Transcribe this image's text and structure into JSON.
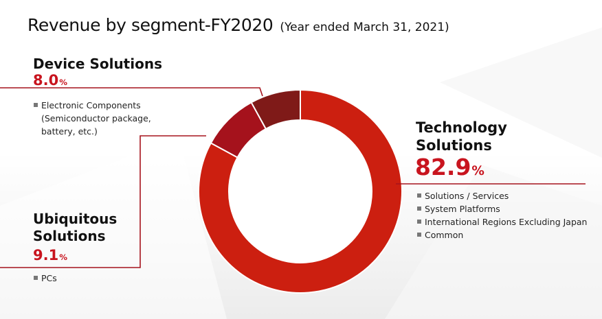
{
  "header": {
    "title": "Revenue by segment-FY2020",
    "subtitle": "(Year ended March 31, 2021)"
  },
  "colors": {
    "technology": "#cc1f10",
    "ubiquitous": "#a5121c",
    "device": "#7f1a18",
    "accent_text": "#c8141e",
    "leader_line": "#a6121c"
  },
  "chart_data": {
    "type": "pie",
    "variant": "donut",
    "title": "Revenue by segment-FY2020",
    "subtitle": "(Year ended March 31, 2021)",
    "unit": "%",
    "slices": [
      {
        "key": "technology",
        "name": "Technology Solutions",
        "value": 82.9,
        "value_label": "82.9",
        "items": [
          "Solutions / Services",
          "System Platforms",
          "International Regions Excluding Japan",
          "Common"
        ]
      },
      {
        "key": "ubiquitous",
        "name": "Ubiquitous Solutions",
        "value": 9.1,
        "value_label": "9.1",
        "items": [
          "PCs"
        ]
      },
      {
        "key": "device",
        "name": "Device Solutions",
        "value": 8.0,
        "value_label": "8.0",
        "items": [
          "Electronic Components (Semiconductor package, battery, etc.)"
        ]
      }
    ]
  },
  "labels": {
    "device": {
      "name": "Device Solutions",
      "value": "8.0",
      "unit": "%",
      "items": [
        "Electronic Components\n(Semiconductor package,\nbattery, etc.)"
      ]
    },
    "technology": {
      "name": "Technology\nSolutions",
      "value": "82.9",
      "unit": "%",
      "items": [
        "Solutions / Services",
        "System Platforms",
        "International Regions Excluding Japan",
        "Common"
      ]
    },
    "ubiquitous": {
      "name": "Ubiquitous\nSolutions",
      "value": "9.1",
      "unit": "%",
      "items": [
        "PCs"
      ]
    }
  }
}
